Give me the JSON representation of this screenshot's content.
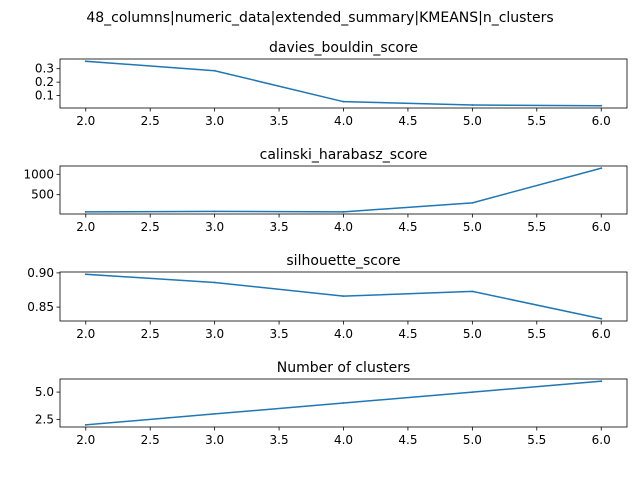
{
  "figure": {
    "title": "48_columns|numeric_data|extended_summary|KMEANS|n_clusters"
  },
  "colors": {
    "line": "#1f77b4",
    "axes": "#000000",
    "background": "#ffffff"
  },
  "chart_data": [
    {
      "type": "line",
      "title": "davies_bouldin_score",
      "x": [
        2.0,
        3.0,
        4.0,
        5.0,
        6.0
      ],
      "series": [
        {
          "values": [
            0.355,
            0.285,
            0.055,
            0.03,
            0.025
          ]
        }
      ],
      "xlim": [
        1.8,
        6.2
      ],
      "ylim": [
        0.008,
        0.372
      ],
      "xticks": [
        "2.0",
        "2.5",
        "3.0",
        "3.5",
        "4.0",
        "4.5",
        "5.0",
        "5.5",
        "6.0"
      ],
      "yticks": [
        "0.1",
        "0.2",
        "0.3"
      ],
      "xlabel": "",
      "ylabel": "",
      "grid": false
    },
    {
      "type": "line",
      "title": "calinski_harabasz_score",
      "x": [
        2.0,
        3.0,
        4.0,
        5.0,
        6.0
      ],
      "series": [
        {
          "values": [
            80,
            90,
            80,
            300,
            1150
          ]
        }
      ],
      "xlim": [
        1.8,
        6.2
      ],
      "ylim": [
        27,
        1203
      ],
      "xticks": [
        "2.0",
        "2.5",
        "3.0",
        "3.5",
        "4.0",
        "4.5",
        "5.0",
        "5.5",
        "6.0"
      ],
      "yticks": [
        "500",
        "1000"
      ],
      "xlabel": "",
      "ylabel": "",
      "grid": false
    },
    {
      "type": "line",
      "title": "silhouette_score",
      "x": [
        2.0,
        3.0,
        4.0,
        5.0,
        6.0
      ],
      "series": [
        {
          "values": [
            0.898,
            0.886,
            0.866,
            0.873,
            0.833
          ]
        }
      ],
      "xlim": [
        1.8,
        6.2
      ],
      "ylim": [
        0.8297,
        0.9013
      ],
      "xticks": [
        "2.0",
        "2.5",
        "3.0",
        "3.5",
        "4.0",
        "4.5",
        "5.0",
        "5.5",
        "6.0"
      ],
      "yticks": [
        "0.85",
        "0.90"
      ],
      "xlabel": "",
      "ylabel": "",
      "grid": false
    },
    {
      "type": "line",
      "title": "Number of clusters",
      "x": [
        2.0,
        3.0,
        4.0,
        5.0,
        6.0
      ],
      "series": [
        {
          "values": [
            2,
            3,
            4,
            5,
            6
          ]
        }
      ],
      "xlim": [
        1.8,
        6.2
      ],
      "ylim": [
        1.8,
        6.2
      ],
      "xticks": [
        "2.0",
        "2.5",
        "3.0",
        "3.5",
        "4.0",
        "4.5",
        "5.0",
        "5.5",
        "6.0"
      ],
      "yticks": [
        "2.5",
        "5.0"
      ],
      "xlabel": "",
      "ylabel": "",
      "grid": false
    }
  ]
}
